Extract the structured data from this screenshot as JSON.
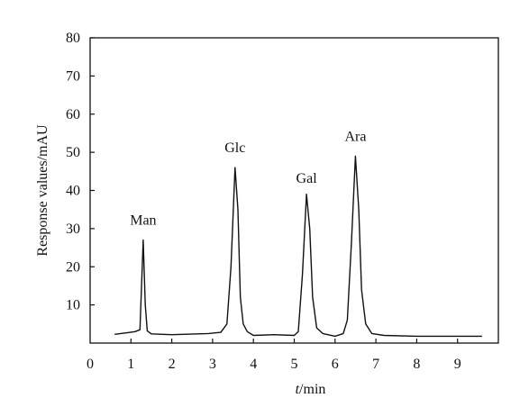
{
  "chart_data": {
    "type": "line",
    "title": "",
    "xlabel": {
      "italic": "t",
      "rest": "/min"
    },
    "ylabel": "Response values/mAU",
    "xlim": [
      0,
      10
    ],
    "ylim": [
      0,
      80
    ],
    "x_ticks": [
      "0",
      "1",
      "2",
      "3",
      "4",
      "5",
      "6",
      "7",
      "8",
      "9"
    ],
    "y_ticks": [
      "10",
      "20",
      "30",
      "40",
      "50",
      "60",
      "70",
      "80"
    ],
    "grid": false,
    "legend": "none",
    "line_color": "#111111",
    "series": [
      {
        "x": [
          0.6,
          0.9,
          1.1,
          1.22,
          1.3,
          1.35,
          1.4,
          1.5,
          2.0,
          2.9,
          3.2,
          3.35,
          3.45,
          3.55,
          3.62,
          3.68,
          3.75,
          3.85,
          4.0,
          4.5,
          5.0,
          5.1,
          5.2,
          5.3,
          5.38,
          5.45,
          5.55,
          5.7,
          6.0,
          6.2,
          6.3,
          6.4,
          6.5,
          6.58,
          6.65,
          6.75,
          6.9,
          7.2,
          8.0,
          9.0,
          9.6
        ],
        "y": [
          2.3,
          2.7,
          3.0,
          3.5,
          27,
          10,
          3.2,
          2.4,
          2.2,
          2.5,
          2.8,
          5,
          20,
          46,
          35,
          12,
          5,
          3.0,
          2.0,
          2.2,
          2.0,
          3.0,
          18,
          39,
          30,
          12,
          4,
          2.5,
          1.8,
          2.5,
          6,
          26,
          49,
          35,
          14,
          5,
          2.5,
          2.0,
          1.8,
          1.8,
          1.8
        ]
      }
    ],
    "annotations": [
      {
        "text": "Man",
        "x": 1.3,
        "y": 31
      },
      {
        "text": "Glc",
        "x": 3.55,
        "y": 50
      },
      {
        "text": "Gal",
        "x": 5.3,
        "y": 42
      },
      {
        "text": "Ara",
        "x": 6.5,
        "y": 53
      }
    ]
  }
}
